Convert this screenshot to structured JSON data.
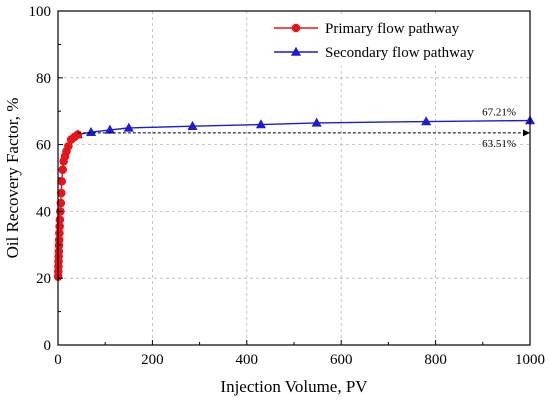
{
  "chart_data": {
    "type": "line",
    "xlabel": "Injection Volume, PV",
    "ylabel": "Oil Recovery Factor, %",
    "xlim": [
      0,
      1000
    ],
    "ylim": [
      0,
      100
    ],
    "xticks": [
      0,
      200,
      400,
      600,
      800,
      1000
    ],
    "yticks": [
      0,
      20,
      40,
      60,
      80,
      100
    ],
    "xtick_labels": [
      "0",
      "200",
      "400",
      "600",
      "800",
      "1000"
    ],
    "ytick_labels": [
      "0",
      "20",
      "40",
      "60",
      "80",
      "100"
    ],
    "grid": true,
    "legend_position": "top-right",
    "series": [
      {
        "name": "Primary flow pathway",
        "color": "#e8141c",
        "marker": "circle",
        "x": [
          0.3,
          0.6,
          0.9,
          1.2,
          1.5,
          1.8,
          2.1,
          2.5,
          3.0,
          3.5,
          4,
          5,
          6,
          7,
          8,
          10,
          12,
          15,
          18,
          22,
          28,
          35,
          42
        ],
        "y": [
          20.5,
          22.0,
          23.5,
          25.0,
          26.5,
          28.0,
          29.8,
          31.5,
          33.5,
          35.5,
          37.5,
          40.0,
          42.5,
          45.5,
          49.0,
          52.5,
          55.0,
          56.5,
          58.0,
          59.5,
          61.5,
          62.3,
          63.0
        ]
      },
      {
        "name": "Secondary flow pathway",
        "color": "#1c1cd6",
        "marker": "triangle",
        "x": [
          42,
          70,
          110,
          150,
          285,
          430,
          548,
          780,
          1000
        ],
        "y": [
          63.0,
          63.7,
          64.4,
          65.0,
          65.5,
          66.0,
          66.5,
          66.9,
          67.21
        ]
      }
    ],
    "reference_line": {
      "y": 63.51,
      "x_start": 42,
      "x_end": 1000,
      "style": "dashed-arrow"
    },
    "annotations": [
      {
        "text": "67.21%",
        "x": 1000,
        "y": 67.21
      },
      {
        "text": "63.51%",
        "x": 1000,
        "y": 63.51
      }
    ]
  }
}
